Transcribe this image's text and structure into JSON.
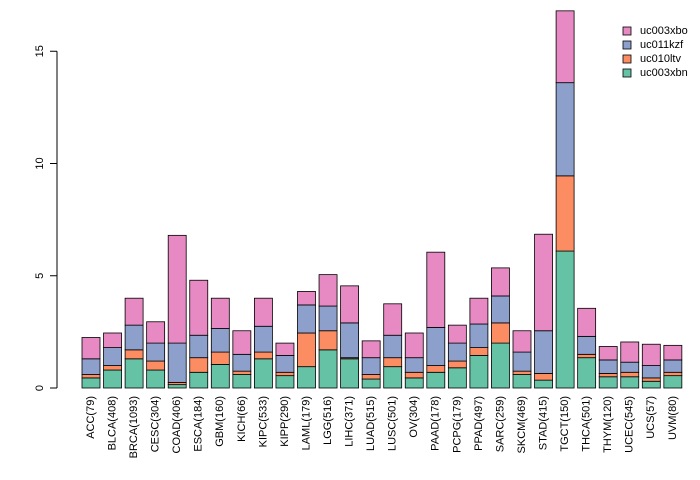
{
  "chart_data": {
    "type": "bar",
    "stacked": true,
    "title": "",
    "xlabel": "",
    "ylabel": "",
    "ylim": [
      0,
      17
    ],
    "yticks": [
      0,
      5,
      10,
      15
    ],
    "legend_position": "top-right",
    "categories": [
      "ACC(79)",
      "BLCA(408)",
      "BRCA(1093)",
      "CESC(304)",
      "COAD(406)",
      "ESCA(184)",
      "GBM(160)",
      "KICH(66)",
      "KIPC(533)",
      "KIPP(290)",
      "LAML(179)",
      "LGG(516)",
      "LIHC(371)",
      "LUAD(515)",
      "LUSC(501)",
      "OV(304)",
      "PAAD(178)",
      "PCPG(179)",
      "PPAD(497)",
      "SARC(259)",
      "SKCM(469)",
      "STAD(415)",
      "TGCT(150)",
      "THCA(501)",
      "THYM(120)",
      "UCEC(545)",
      "UCS(57)",
      "UVM(80)"
    ],
    "series": [
      {
        "name": "uc003xbn",
        "color": "#66c2a5",
        "values": [
          0.45,
          0.8,
          1.3,
          0.8,
          0.15,
          0.7,
          1.05,
          0.6,
          1.3,
          0.55,
          0.95,
          1.7,
          1.3,
          0.4,
          0.95,
          0.45,
          0.7,
          0.9,
          1.45,
          2.0,
          0.6,
          0.35,
          6.1,
          1.35,
          0.5,
          0.5,
          0.3,
          0.55
        ]
      },
      {
        "name": "uc010ltv",
        "color": "#fc8d62",
        "values": [
          0.15,
          0.2,
          0.4,
          0.4,
          0.1,
          0.65,
          0.55,
          0.15,
          0.3,
          0.15,
          1.5,
          0.85,
          0.05,
          0.2,
          0.4,
          0.25,
          0.3,
          0.3,
          0.35,
          0.9,
          0.15,
          0.3,
          3.35,
          0.15,
          0.15,
          0.2,
          0.15,
          0.15
        ]
      },
      {
        "name": "uc011kzf",
        "color": "#8da0cb",
        "values": [
          0.7,
          0.8,
          1.1,
          0.8,
          1.75,
          1.0,
          1.05,
          0.75,
          1.15,
          0.75,
          1.25,
          1.1,
          1.55,
          0.75,
          1.0,
          0.65,
          1.7,
          0.8,
          1.05,
          1.2,
          0.85,
          1.9,
          4.15,
          0.8,
          0.6,
          0.45,
          0.55,
          0.55
        ]
      },
      {
        "name": "uc003xbo",
        "color": "#e78ac3",
        "values": [
          0.95,
          0.65,
          1.2,
          0.95,
          4.8,
          2.45,
          1.35,
          1.05,
          1.25,
          0.55,
          0.6,
          1.4,
          1.65,
          0.75,
          1.4,
          1.1,
          3.35,
          0.8,
          1.15,
          1.25,
          0.95,
          4.3,
          3.2,
          1.25,
          0.6,
          0.9,
          0.95,
          0.65
        ]
      }
    ]
  }
}
